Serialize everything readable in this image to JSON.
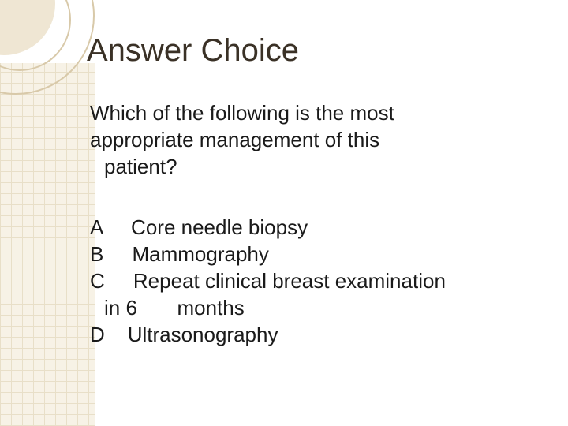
{
  "slide": {
    "title": "Answer Choice",
    "question_line1": "Which of the following is the most",
    "question_line2": "appropriate management of this",
    "question_line3": "patient?",
    "options": {
      "a": {
        "letter": "A",
        "text": "Core needle biopsy"
      },
      "b": {
        "letter": "B",
        "text": "Mammography"
      },
      "c": {
        "letter": "C",
        "text_part1": "Repeat clinical breast examination",
        "wrap_line": "in 6       months"
      },
      "d": {
        "letter": "D",
        "text": "Ultrasonography"
      }
    }
  },
  "style": {
    "background_color": "#ffffff",
    "title_color": "#3a3126",
    "body_color": "#1a1a1a",
    "accent_fill": "#efe6d3",
    "accent_line": "#d8c9a9",
    "hatch_bg": "#f7f2e6",
    "hatch_line": "#e8dfc8",
    "title_fontsize": 40,
    "body_fontsize": 26,
    "font_family": "Arial"
  }
}
